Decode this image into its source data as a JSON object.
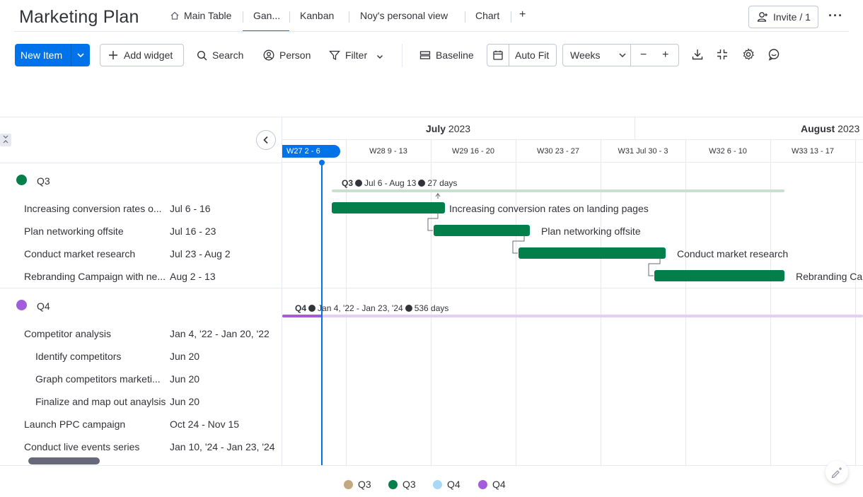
{
  "board": {
    "title": "Marketing Plan"
  },
  "tabs": [
    {
      "label": "Main Table",
      "icon": "home-icon"
    },
    {
      "label": "Gan...",
      "active": true
    },
    {
      "label": "Kanban"
    },
    {
      "label": "Noy's personal view"
    },
    {
      "label": "Chart"
    },
    {
      "label": "+"
    }
  ],
  "header": {
    "invite_label": "Invite / 1",
    "more_label": "···"
  },
  "toolbar": {
    "new_item": "New Item",
    "add_widget": "Add widget",
    "search": "Search",
    "person": "Person",
    "filter": "Filter",
    "baseline": "Baseline",
    "auto_fit": "Auto Fit",
    "zoom_select": "Weeks",
    "zoom_out": "−",
    "zoom_in": "+"
  },
  "timeline": {
    "months": [
      {
        "name": "July",
        "year": "2023"
      },
      {
        "name": "August",
        "year": "2023"
      }
    ],
    "weeks": [
      "W27 2 - 6",
      "W28 9 - 13",
      "W29 16 - 20",
      "W30 23 - 27",
      "W31 Jul 30 - 3",
      "W32 6 - 10",
      "W33 13 - 17"
    ],
    "current_week": "W27 2 - 6"
  },
  "groups": [
    {
      "name": "Q3",
      "color": "#037f4c",
      "summary": {
        "name": "Q3",
        "dates": "Jul 6 - Aug 13",
        "duration": "27 days"
      },
      "items": [
        {
          "name": "Increasing conversion rates o...",
          "full_name": "Increasing conversion rates on landing pages",
          "dates": "Jul 6 - 16"
        },
        {
          "name": "Plan networking offsite",
          "full_name": "Plan networking offsite",
          "dates": "Jul 16 - 23"
        },
        {
          "name": "Conduct market research",
          "full_name": "Conduct market research",
          "dates": "Jul 23 - Aug 2"
        },
        {
          "name": "Rebranding Campaign with ne...",
          "full_name": "Rebranding Ca",
          "dates": "Aug 2 - 13"
        }
      ]
    },
    {
      "name": "Q4",
      "color": "#a25ddc",
      "summary": {
        "name": "Q4",
        "dates": "Jan 4, '22 - Jan 23, '24",
        "duration": "536 days"
      },
      "items": [
        {
          "name": "Competitor analysis",
          "dates": "Jan 4, '22 - Jan 20, '22"
        },
        {
          "name": "Identify competitors",
          "dates": "Jun 20"
        },
        {
          "name": "Graph competitors marketi...",
          "dates": "Jun 20"
        },
        {
          "name": "Finalize and map out anaylsis",
          "dates": "Jun 20"
        },
        {
          "name": "Launch PPC campaign",
          "dates": "Oct 24 - Nov 15"
        },
        {
          "name": "Conduct live events series",
          "dates": "Jan 10, '24 - Jan 23, '24"
        }
      ]
    }
  ],
  "legend": [
    {
      "label": "Q3",
      "color": "#c4a882"
    },
    {
      "label": "Q3",
      "color": "#037f4c"
    },
    {
      "label": "Q4",
      "color": "#a9d8f5"
    },
    {
      "label": "Q4",
      "color": "#a25ddc"
    }
  ]
}
